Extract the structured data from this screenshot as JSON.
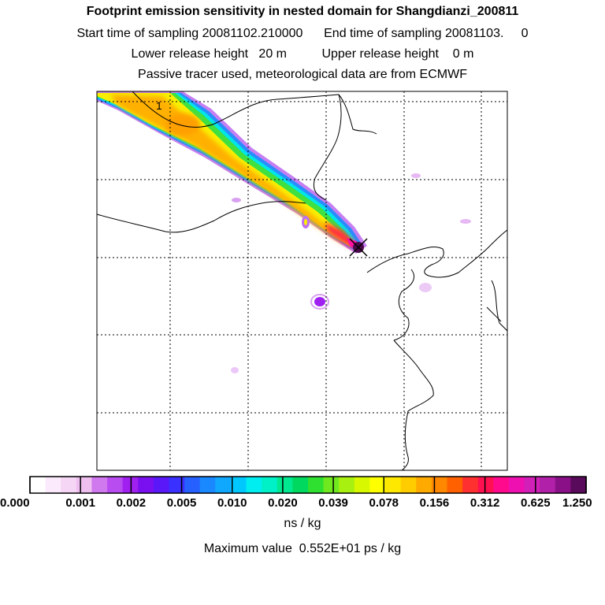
{
  "header": {
    "title": "Footprint emission sensitivity in nested domain for Shangdianzi_200811",
    "sampling_line": "Start time of sampling 20081102.210000      End time of sampling 20081103.     0",
    "release_line": "Lower release height   20 m          Upper release height    0 m",
    "tracer_line": "Passive tracer used, meteorological data are from ECMWF"
  },
  "map": {
    "marker_label": "1",
    "source_marker": "station-x-marker"
  },
  "colorbar": {
    "tick_labels": [
      "0.000",
      "0.001",
      "0.002",
      "0.005",
      "0.010",
      "0.020",
      "0.039",
      "0.078",
      "0.156",
      "0.312",
      "0.625",
      "1.250"
    ],
    "colors": [
      "#ffffff",
      "#fbeafb",
      "#f5d6f5",
      "#eebfee",
      "#d078ee",
      "#b84cf0",
      "#a020f0",
      "#7a10f0",
      "#5a18f8",
      "#3a30ff",
      "#2660ff",
      "#1a88ff",
      "#10a8ff",
      "#00c8ff",
      "#00eef0",
      "#00f0c8",
      "#00e890",
      "#00d860",
      "#30e030",
      "#70e820",
      "#a8f010",
      "#d8f800",
      "#ffff00",
      "#ffe800",
      "#ffcc00",
      "#ffaa00",
      "#ff8800",
      "#ff6000",
      "#ff3030",
      "#ff1050",
      "#ff0a8c",
      "#ee10b0",
      "#d020b8",
      "#b020a8",
      "#8a1088",
      "#5a0a5a"
    ],
    "units_label": "ns / kg",
    "max_value_label": "Maximum value  0.552E+01 ps / kg"
  }
}
